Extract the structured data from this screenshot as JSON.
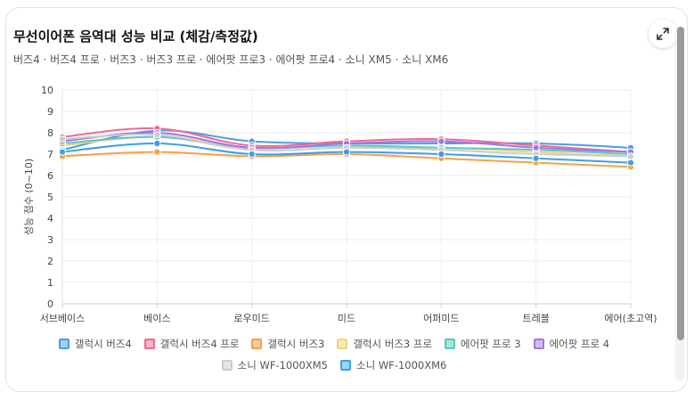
{
  "card": {
    "title": "무선이어폰 음역대 성능 비교 (체감/측정값)",
    "subtitle": "버즈4 · 버즈4 프로 · 버즈3 · 버즈3 프로 · 에어팟 프로3 · 에어팟 프로4 · 소니 XM5 · 소니 XM6"
  },
  "chart_data": {
    "type": "line",
    "title": "",
    "xlabel": "",
    "ylabel": "성능 점수 (0~10)",
    "ylim": [
      0,
      10
    ],
    "y_ticks": [
      0,
      1,
      2,
      3,
      4,
      5,
      6,
      7,
      8,
      9,
      10
    ],
    "grid": true,
    "legend_position": "bottom",
    "categories": [
      "서브베이스",
      "베이스",
      "로우미드",
      "미드",
      "어퍼미드",
      "트레블",
      "에어(초고역)"
    ],
    "series": [
      {
        "name": "갤럭시 버즈4",
        "color": "#4a9ee3",
        "fill": "#9fd0f5",
        "values": [
          7.2,
          8.1,
          7.6,
          7.5,
          7.5,
          7.5,
          7.3
        ]
      },
      {
        "name": "갤럭시 버즈4 프로",
        "color": "#f06b8c",
        "fill": "#f8b4c4",
        "values": [
          7.8,
          8.2,
          7.4,
          7.6,
          7.7,
          7.4,
          7.1
        ]
      },
      {
        "name": "갤럭시 버즈3",
        "color": "#f5a04a",
        "fill": "#f9cc9a",
        "values": [
          6.9,
          7.1,
          6.9,
          7.0,
          6.8,
          6.6,
          6.4
        ]
      },
      {
        "name": "갤럭시 버즈3 프로",
        "color": "#f5d278",
        "fill": "#faeab5",
        "values": [
          7.4,
          7.8,
          7.2,
          7.3,
          7.3,
          7.1,
          6.9
        ]
      },
      {
        "name": "에어팟 프로 3",
        "color": "#5cc8c0",
        "fill": "#a8e2de",
        "values": [
          7.5,
          7.8,
          7.3,
          7.4,
          7.3,
          7.2,
          7.0
        ]
      },
      {
        "name": "에어팟 프로 4",
        "color": "#a374e8",
        "fill": "#d3bdf5",
        "values": [
          7.6,
          8.0,
          7.3,
          7.5,
          7.6,
          7.3,
          7.1
        ]
      },
      {
        "name": "소니 WF-1000XM5",
        "color": "#cccccc",
        "fill": "#e6e6e6",
        "values": [
          7.7,
          7.9,
          7.2,
          7.3,
          7.2,
          7.0,
          6.9
        ]
      },
      {
        "name": "소니 WF-1000XM6",
        "color": "#3d9fe6",
        "fill": "#9fd0f5",
        "values": [
          7.1,
          7.5,
          7.0,
          7.1,
          7.0,
          6.8,
          6.6
        ]
      }
    ]
  }
}
